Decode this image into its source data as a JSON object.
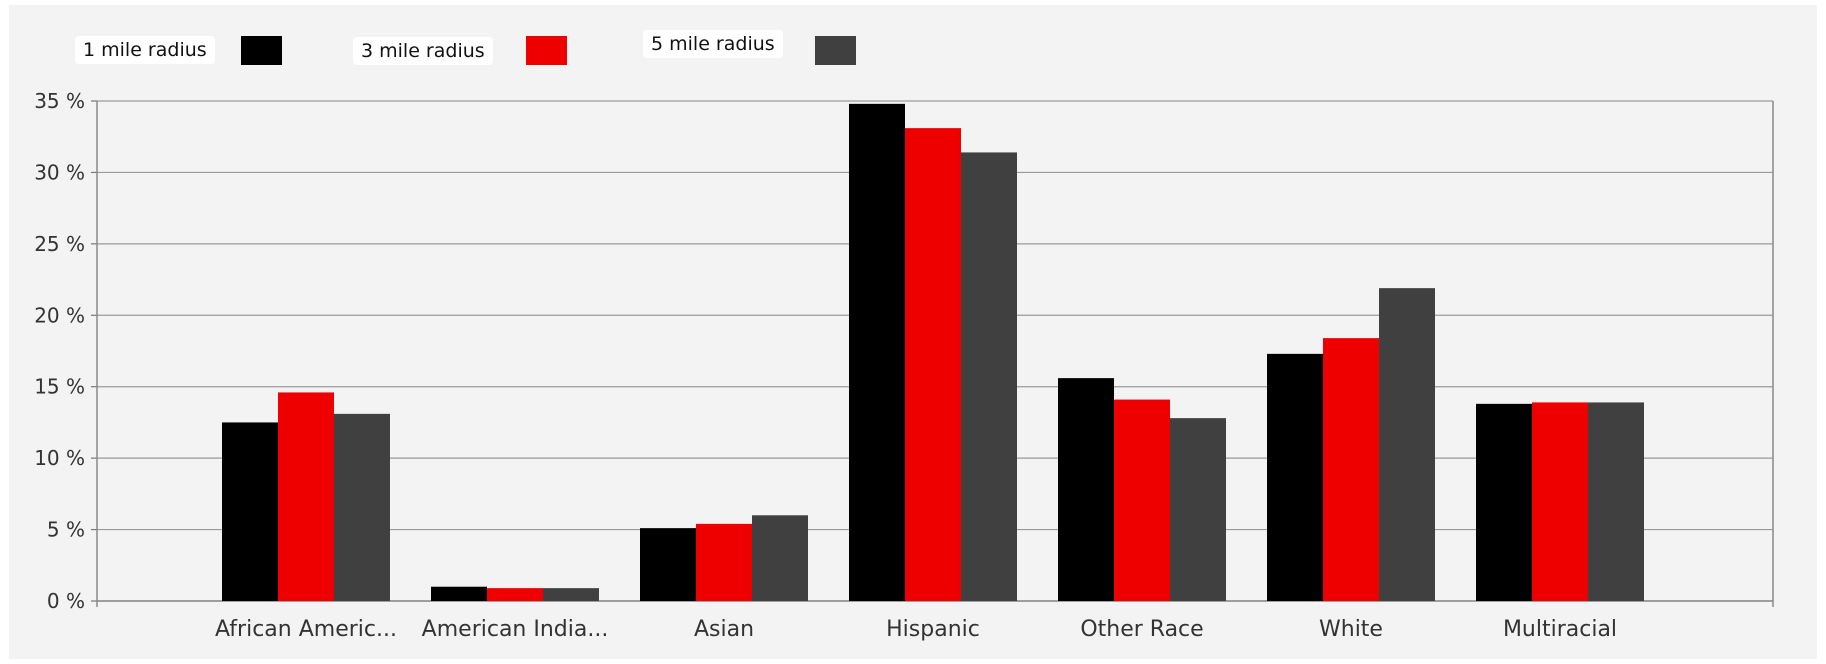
{
  "chart_data": {
    "type": "bar",
    "categories": [
      "African Americ...",
      "American India...",
      "Asian",
      "Hispanic",
      "Other Race",
      "White",
      "Multiracial"
    ],
    "series": [
      {
        "name": "1 mile radius",
        "color": "#000000",
        "values": [
          12.5,
          1.0,
          5.1,
          34.8,
          15.6,
          17.3,
          13.8
        ]
      },
      {
        "name": "3 mile radius",
        "color": "#ee0000",
        "values": [
          14.6,
          0.9,
          5.4,
          33.1,
          14.1,
          18.4,
          13.9
        ]
      },
      {
        "name": "5 mile radius",
        "color": "#404040",
        "values": [
          13.1,
          0.9,
          6.0,
          31.4,
          12.8,
          21.9,
          13.9
        ]
      }
    ],
    "yticks": [
      "0 %",
      "5 %",
      "10 %",
      "15 %",
      "20 %",
      "25 %",
      "30 %",
      "35 %"
    ],
    "ylim": [
      0,
      35
    ],
    "grid": true,
    "legend_position": "top-left"
  }
}
